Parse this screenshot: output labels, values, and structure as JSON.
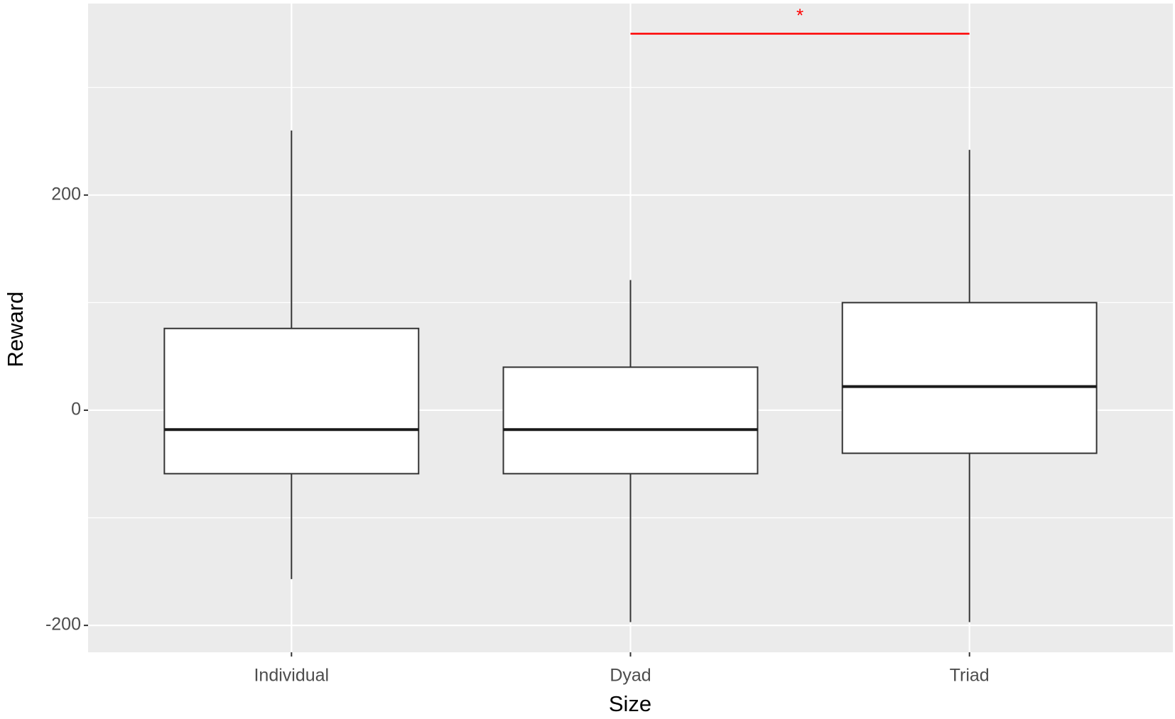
{
  "chart_data": {
    "type": "box",
    "x_label": "Size",
    "y_label": "Reward",
    "categories": [
      "Individual",
      "Dyad",
      "Triad"
    ],
    "boxes": [
      {
        "whisker_low": -157,
        "q1": -59,
        "median": -18,
        "q3": 76,
        "whisker_high": 260
      },
      {
        "whisker_low": -197,
        "q1": -59,
        "median": -18,
        "q3": 40,
        "whisker_high": 121
      },
      {
        "whisker_low": -197,
        "q1": -40,
        "median": 22,
        "q3": 100,
        "whisker_high": 242
      }
    ],
    "ylim": [
      -225,
      378
    ],
    "yticks": [
      -200,
      0,
      200
    ],
    "minor_yticks": [
      -100,
      100,
      300
    ],
    "grid": true,
    "annotation": {
      "text": "*",
      "from": 1,
      "to": 2,
      "y": 350,
      "color": "#ff0000"
    }
  }
}
